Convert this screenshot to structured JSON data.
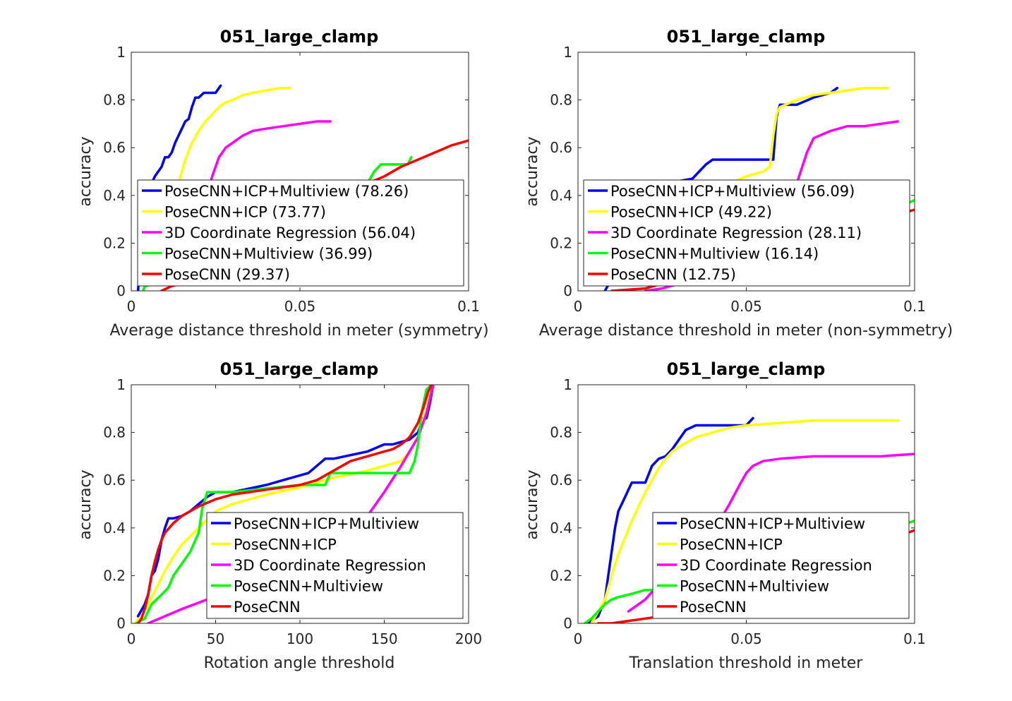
{
  "figure": {
    "panel_order": [
      "sym",
      "nonsym",
      "rot",
      "trans"
    ]
  },
  "chart_data": [
    {
      "id": "sym",
      "type": "line",
      "title": "051_large_clamp",
      "xlabel": "Average distance threshold in meter (symmetry)",
      "ylabel": "accuracy",
      "xlim": [
        0,
        0.1
      ],
      "ylim": [
        0,
        1
      ],
      "xticks": [
        0,
        0.05,
        0.1
      ],
      "xtick_labels": [
        "0",
        "0.05",
        "0.1"
      ],
      "yticks": [
        0,
        0.2,
        0.4,
        0.6,
        0.8,
        1
      ],
      "ytick_labels": [
        "0",
        "0.2",
        "0.4",
        "0.6",
        "0.8",
        "1"
      ],
      "grid": false,
      "legend_position": "bottom-left",
      "series": [
        {
          "name": "PoseCNN+ICP+Multiview (78.26)",
          "color": "#0000ff",
          "x": [
            0.002,
            0.004,
            0.005,
            0.006,
            0.007,
            0.008,
            0.009,
            0.01,
            0.011,
            0.012,
            0.013,
            0.014,
            0.015,
            0.016,
            0.017,
            0.018,
            0.019,
            0.02,
            0.0215,
            0.024,
            0.025,
            0.0265
          ],
          "y": [
            0.0,
            0.38,
            0.42,
            0.45,
            0.48,
            0.5,
            0.52,
            0.56,
            0.56,
            0.58,
            0.62,
            0.65,
            0.68,
            0.71,
            0.72,
            0.77,
            0.81,
            0.81,
            0.83,
            0.83,
            0.83,
            0.86
          ]
        },
        {
          "name": "PoseCNN+ICP (73.77)",
          "color": "#ffff00",
          "x": [
            0.012,
            0.014,
            0.016,
            0.018,
            0.02,
            0.022,
            0.024,
            0.026,
            0.028,
            0.03,
            0.033,
            0.036,
            0.04,
            0.044,
            0.047
          ],
          "y": [
            0.38,
            0.45,
            0.55,
            0.62,
            0.67,
            0.71,
            0.74,
            0.77,
            0.79,
            0.8,
            0.82,
            0.83,
            0.84,
            0.85,
            0.85
          ]
        },
        {
          "name": "3D Coordinate Regression (56.04)",
          "color": "#ff00ff",
          "x": [
            0.022,
            0.024,
            0.026,
            0.028,
            0.03,
            0.033,
            0.036,
            0.04,
            0.045,
            0.05,
            0.055,
            0.059
          ],
          "y": [
            0.38,
            0.48,
            0.56,
            0.6,
            0.62,
            0.65,
            0.67,
            0.68,
            0.69,
            0.7,
            0.71,
            0.71
          ]
        },
        {
          "name": "PoseCNN+Multiview (36.99)",
          "color": "#00ff00",
          "x": [
            0.0035,
            0.004,
            0.0045,
            0.07,
            0.072,
            0.074,
            0.076,
            0.078,
            0.082,
            0.083
          ],
          "y": [
            0.0,
            0.02,
            0.02,
            0.45,
            0.5,
            0.53,
            0.53,
            0.53,
            0.53,
            0.56
          ]
        },
        {
          "name": "PoseCNN (29.37)",
          "color": "#ff0000",
          "x": [
            0.009,
            0.012,
            0.015,
            0.07,
            0.075,
            0.08,
            0.085,
            0.09,
            0.095,
            0.1
          ],
          "y": [
            0.0,
            0.02,
            0.03,
            0.45,
            0.48,
            0.52,
            0.55,
            0.58,
            0.61,
            0.63
          ]
        }
      ]
    },
    {
      "id": "nonsym",
      "type": "line",
      "title": "051_large_clamp",
      "xlabel": "Average distance threshold in meter (non-symmetry)",
      "ylabel": "accuracy",
      "xlim": [
        0,
        0.1
      ],
      "ylim": [
        0,
        1
      ],
      "xticks": [
        0,
        0.05,
        0.1
      ],
      "xtick_labels": [
        "0",
        "0.05",
        "0.1"
      ],
      "yticks": [
        0,
        0.2,
        0.4,
        0.6,
        0.8,
        1
      ],
      "ytick_labels": [
        "0",
        "0.2",
        "0.4",
        "0.6",
        "0.8",
        "1"
      ],
      "grid": false,
      "legend_position": "bottom-left",
      "series": [
        {
          "name": "PoseCNN+ICP+Multiview (56.09)",
          "color": "#0000ff",
          "x": [
            0.008,
            0.01,
            0.015,
            0.02,
            0.025,
            0.03,
            0.034,
            0.036,
            0.038,
            0.04,
            0.045,
            0.05,
            0.055,
            0.058,
            0.059,
            0.06,
            0.065,
            0.07,
            0.075,
            0.077
          ],
          "y": [
            0.0,
            0.05,
            0.15,
            0.27,
            0.37,
            0.46,
            0.47,
            0.5,
            0.53,
            0.55,
            0.55,
            0.55,
            0.55,
            0.55,
            0.73,
            0.78,
            0.78,
            0.81,
            0.83,
            0.85
          ]
        },
        {
          "name": "PoseCNN+ICP (49.22)",
          "color": "#ffff00",
          "x": [
            0.01,
            0.015,
            0.02,
            0.025,
            0.03,
            0.035,
            0.04,
            0.045,
            0.05,
            0.055,
            0.057,
            0.058,
            0.059,
            0.06,
            0.065,
            0.07,
            0.075,
            0.08,
            0.085,
            0.092
          ],
          "y": [
            0.05,
            0.12,
            0.2,
            0.26,
            0.32,
            0.38,
            0.42,
            0.45,
            0.48,
            0.5,
            0.52,
            0.65,
            0.74,
            0.77,
            0.8,
            0.82,
            0.83,
            0.84,
            0.85,
            0.85
          ]
        },
        {
          "name": "3D Coordinate Regression (28.11)",
          "color": "#ff00ff",
          "x": [
            0.02,
            0.025,
            0.03,
            0.04,
            0.05,
            0.058,
            0.062,
            0.065,
            0.068,
            0.07,
            0.075,
            0.08,
            0.085,
            0.09,
            0.095
          ],
          "y": [
            0.0,
            0.01,
            0.03,
            0.07,
            0.12,
            0.18,
            0.3,
            0.45,
            0.58,
            0.64,
            0.67,
            0.69,
            0.69,
            0.7,
            0.71
          ]
        },
        {
          "name": "PoseCNN+Multiview (16.14)",
          "color": "#00ff00",
          "x": [
            0.07,
            0.08,
            0.09,
            0.095,
            0.1
          ],
          "y": [
            0.28,
            0.3,
            0.33,
            0.35,
            0.38
          ]
        },
        {
          "name": "PoseCNN (12.75)",
          "color": "#ff0000",
          "x": [
            0.01,
            0.02,
            0.03,
            0.05,
            0.07,
            0.09,
            0.1
          ],
          "y": [
            0.0,
            0.01,
            0.05,
            0.12,
            0.2,
            0.3,
            0.34
          ]
        }
      ]
    },
    {
      "id": "rot",
      "type": "line",
      "title": "051_large_clamp",
      "xlabel": "Rotation angle threshold",
      "ylabel": "accuracy",
      "xlim": [
        0,
        200
      ],
      "ylim": [
        0,
        1
      ],
      "xticks": [
        0,
        50,
        100,
        150,
        200
      ],
      "xtick_labels": [
        "0",
        "50",
        "100",
        "150",
        "200"
      ],
      "yticks": [
        0,
        0.2,
        0.4,
        0.6,
        0.8,
        1
      ],
      "ytick_labels": [
        "0",
        "0.2",
        "0.4",
        "0.6",
        "0.8",
        "1"
      ],
      "grid": false,
      "legend_position": "bottom-right",
      "series": [
        {
          "name": "PoseCNN+ICP+Multiview",
          "color": "#0000ff",
          "x": [
            4,
            8,
            10,
            12,
            14,
            16,
            18,
            20,
            22,
            25,
            30,
            35,
            40,
            45,
            50,
            60,
            80,
            90,
            100,
            105,
            110,
            115,
            120,
            140,
            150,
            155,
            160,
            165,
            170,
            173,
            175,
            177,
            179
          ],
          "y": [
            0.03,
            0.08,
            0.12,
            0.2,
            0.22,
            0.27,
            0.35,
            0.4,
            0.44,
            0.44,
            0.45,
            0.47,
            0.5,
            0.53,
            0.55,
            0.55,
            0.58,
            0.6,
            0.62,
            0.63,
            0.66,
            0.69,
            0.69,
            0.72,
            0.75,
            0.75,
            0.76,
            0.77,
            0.8,
            0.86,
            0.86,
            0.92,
            1.0
          ]
        },
        {
          "name": "PoseCNN+ICP",
          "color": "#ffff00",
          "x": [
            2,
            6,
            10,
            15,
            20,
            25,
            30,
            40,
            50,
            60,
            80,
            100,
            120,
            140,
            160,
            165,
            170,
            175,
            178
          ],
          "y": [
            0.0,
            0.03,
            0.08,
            0.15,
            0.22,
            0.28,
            0.33,
            0.4,
            0.47,
            0.5,
            0.54,
            0.57,
            0.61,
            0.64,
            0.68,
            0.72,
            0.78,
            0.9,
            1.0
          ]
        },
        {
          "name": "3D Coordinate Regression",
          "color": "#ff00ff",
          "x": [
            10,
            20,
            30,
            45,
            55,
            130,
            140,
            150,
            160,
            165,
            170,
            175,
            179
          ],
          "y": [
            0.0,
            0.03,
            0.06,
            0.1,
            0.12,
            0.4,
            0.45,
            0.55,
            0.66,
            0.72,
            0.78,
            0.88,
            1.0
          ]
        },
        {
          "name": "PoseCNN+Multiview",
          "color": "#00ff00",
          "x": [
            3,
            8,
            12,
            15,
            18,
            22,
            25,
            30,
            35,
            40,
            42,
            45,
            60,
            100,
            115,
            118,
            150,
            165,
            168,
            170,
            172,
            175,
            178
          ],
          "y": [
            0.0,
            0.02,
            0.08,
            0.1,
            0.12,
            0.15,
            0.2,
            0.25,
            0.3,
            0.38,
            0.48,
            0.55,
            0.55,
            0.58,
            0.58,
            0.63,
            0.63,
            0.63,
            0.68,
            0.75,
            0.88,
            0.98,
            1.0
          ]
        },
        {
          "name": "PoseCNN",
          "color": "#ff0000",
          "x": [
            4,
            6,
            8,
            10,
            12,
            14,
            16,
            18,
            20,
            25,
            30,
            40,
            50,
            60,
            70,
            80,
            90,
            100,
            110,
            120,
            130,
            140,
            150,
            155,
            160,
            165,
            170,
            173,
            176,
            178
          ],
          "y": [
            0.0,
            0.02,
            0.06,
            0.12,
            0.2,
            0.26,
            0.31,
            0.35,
            0.38,
            0.42,
            0.45,
            0.49,
            0.52,
            0.54,
            0.55,
            0.56,
            0.57,
            0.58,
            0.6,
            0.64,
            0.68,
            0.7,
            0.72,
            0.73,
            0.75,
            0.78,
            0.84,
            0.9,
            0.97,
            1.0
          ]
        }
      ]
    },
    {
      "id": "trans",
      "type": "line",
      "title": "051_large_clamp",
      "xlabel": "Translation threshold in meter",
      "ylabel": "accuracy",
      "xlim": [
        0,
        0.1
      ],
      "ylim": [
        0,
        1
      ],
      "xticks": [
        0,
        0.05,
        0.1
      ],
      "xtick_labels": [
        "0",
        "0.05",
        "0.1"
      ],
      "yticks": [
        0,
        0.2,
        0.4,
        0.6,
        0.8,
        1
      ],
      "ytick_labels": [
        "0",
        "0.2",
        "0.4",
        "0.6",
        "0.8",
        "1"
      ],
      "grid": false,
      "legend_position": "bottom-right",
      "series": [
        {
          "name": "PoseCNN+ICP+Multiview",
          "color": "#0000ff",
          "x": [
            0.003,
            0.006,
            0.008,
            0.009,
            0.01,
            0.011,
            0.012,
            0.013,
            0.014,
            0.015,
            0.016,
            0.018,
            0.02,
            0.022,
            0.024,
            0.026,
            0.028,
            0.03,
            0.032,
            0.035,
            0.04,
            0.045,
            0.05,
            0.052
          ],
          "y": [
            0.0,
            0.03,
            0.1,
            0.2,
            0.3,
            0.4,
            0.47,
            0.5,
            0.53,
            0.56,
            0.59,
            0.59,
            0.59,
            0.66,
            0.69,
            0.7,
            0.73,
            0.77,
            0.81,
            0.83,
            0.83,
            0.83,
            0.83,
            0.86
          ]
        },
        {
          "name": "PoseCNN+ICP",
          "color": "#ffff00",
          "x": [
            0.004,
            0.008,
            0.01,
            0.012,
            0.014,
            0.016,
            0.018,
            0.02,
            0.022,
            0.024,
            0.026,
            0.028,
            0.03,
            0.035,
            0.04,
            0.045,
            0.05,
            0.06,
            0.07,
            0.08,
            0.09,
            0.095
          ],
          "y": [
            0.0,
            0.1,
            0.2,
            0.29,
            0.36,
            0.43,
            0.49,
            0.55,
            0.6,
            0.65,
            0.69,
            0.72,
            0.74,
            0.78,
            0.8,
            0.82,
            0.83,
            0.84,
            0.85,
            0.85,
            0.85,
            0.85
          ]
        },
        {
          "name": "3D Coordinate Regression",
          "color": "#ff00ff",
          "x": [
            0.015,
            0.02,
            0.025,
            0.03,
            0.035,
            0.04,
            0.045,
            0.048,
            0.05,
            0.052,
            0.055,
            0.06,
            0.07,
            0.08,
            0.09,
            0.1
          ],
          "y": [
            0.05,
            0.1,
            0.18,
            0.25,
            0.3,
            0.38,
            0.5,
            0.58,
            0.63,
            0.66,
            0.68,
            0.69,
            0.7,
            0.7,
            0.7,
            0.71
          ]
        },
        {
          "name": "PoseCNN+Multiview",
          "color": "#00ff00",
          "x": [
            0.002,
            0.004,
            0.006,
            0.008,
            0.01,
            0.012,
            0.015,
            0.02,
            0.025,
            0.03,
            0.035,
            0.098,
            0.1
          ],
          "y": [
            0.0,
            0.02,
            0.05,
            0.08,
            0.1,
            0.11,
            0.12,
            0.14,
            0.14,
            0.14,
            0.14,
            0.42,
            0.43
          ]
        },
        {
          "name": "PoseCNN",
          "color": "#ff0000",
          "x": [
            0.006,
            0.01,
            0.015,
            0.02,
            0.025,
            0.03,
            0.035,
            0.098,
            0.1
          ],
          "y": [
            0.0,
            0.0,
            0.01,
            0.02,
            0.03,
            0.04,
            0.05,
            0.38,
            0.39
          ]
        }
      ]
    }
  ]
}
